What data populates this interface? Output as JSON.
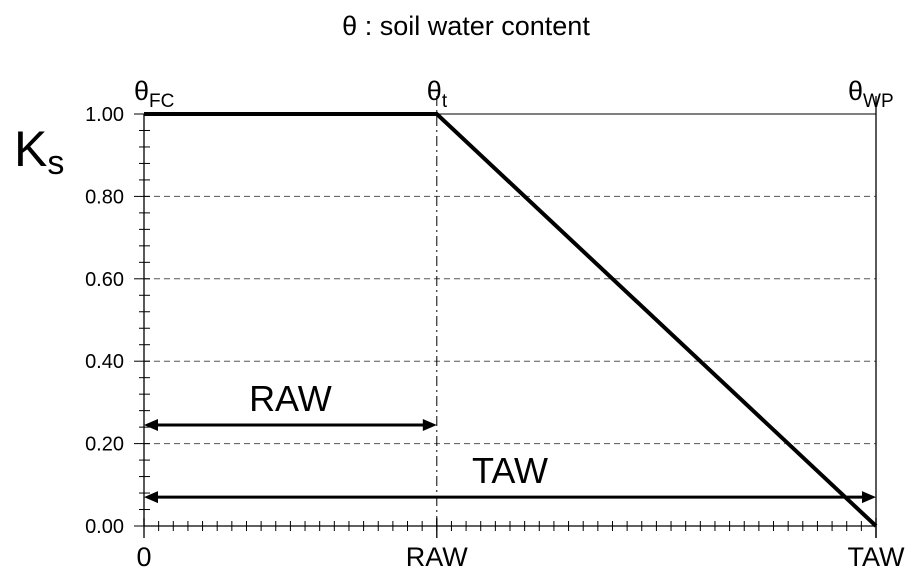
{
  "chart_data": {
    "type": "line",
    "title": {
      "symbol": "θ",
      "text": " : soil water content"
    },
    "ylabel": {
      "main": "K",
      "sub": "s"
    },
    "ylim": [
      0,
      1
    ],
    "yticks": [
      "0.00",
      "0.20",
      "0.40",
      "0.60",
      "0.80",
      "1.00"
    ],
    "ytick_values": [
      0,
      0.2,
      0.4,
      0.6,
      0.8,
      1.0
    ],
    "xlim": [
      0,
      1
    ],
    "xticks": [
      {
        "label": "0",
        "value": 0
      },
      {
        "label": "RAW",
        "value": 0.4
      },
      {
        "label": "TAW",
        "value": 1.0
      }
    ],
    "top_labels": [
      {
        "main": "θ",
        "sub": "FC",
        "value": 0
      },
      {
        "main": "θ",
        "sub": "t",
        "value": 0.4
      },
      {
        "main": "θ",
        "sub": "WP",
        "value": 1.0
      }
    ],
    "series": [
      {
        "x": [
          0,
          0.4,
          1.0
        ],
        "y": [
          1.0,
          1.0,
          0.0
        ]
      }
    ],
    "annotations": [
      {
        "label": "RAW",
        "x_start": 0,
        "x_end": 0.4,
        "y": 0.245
      },
      {
        "label": "TAW",
        "x_start": 0,
        "x_end": 1.0,
        "y": 0.07
      }
    ],
    "grid": "horizontal dashed",
    "line_color": "#000000"
  }
}
